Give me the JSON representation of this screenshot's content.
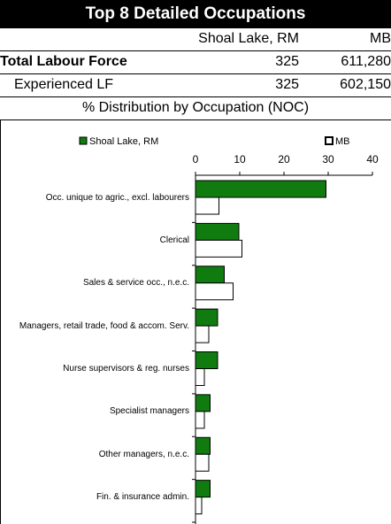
{
  "header": {
    "title": "Top 8 Detailed Occupations",
    "table": {
      "columns": [
        "Shoal Lake, RM",
        "MB"
      ],
      "rows": [
        [
          "Total Labour Force",
          "325",
          "611,280"
        ],
        [
          "Experienced LF",
          "325",
          "602,150"
        ]
      ]
    },
    "subtitle": "% Distribution by Occupation (NOC)"
  },
  "chart_data": {
    "type": "barh",
    "categories": [
      "Occ. unique to agric., excl. labourers",
      "Clerical",
      "Sales & service occ., n.e.c.",
      "Managers, retail trade, food & accom. Serv.",
      "Nurse supervisors & reg. nurses",
      "Specialist managers",
      "Other managers, n.e.c.",
      "Fin. & insurance admin."
    ],
    "series": [
      {
        "name": "Shoal Lake, RM",
        "color": "#107c10",
        "values": [
          29.5,
          9.8,
          6.5,
          5,
          5,
          3.3,
          3.3,
          3.3
        ]
      },
      {
        "name": "MB",
        "color": "#ffffff",
        "values": [
          5.3,
          10.5,
          8.5,
          3,
          2,
          2,
          3,
          1.4
        ]
      }
    ],
    "xlim": [
      0,
      40
    ],
    "xticks": [
      0,
      10,
      20,
      30,
      40
    ]
  }
}
